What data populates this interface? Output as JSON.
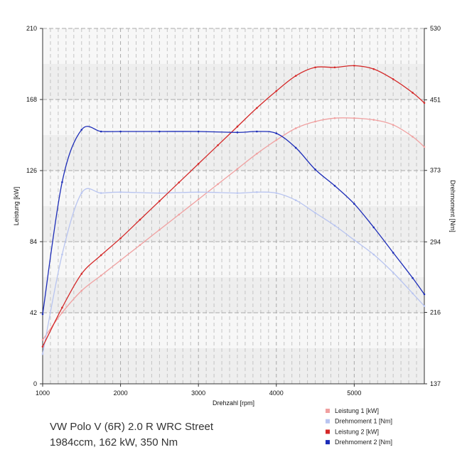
{
  "caption": {
    "title": "VW Polo V (6R) 2.0 R WRC Street",
    "subtitle": "1984ccm, 162 kW, 350 Nm"
  },
  "chart_data": {
    "type": "line",
    "xlabel": "Drehzahl [rpm]",
    "ylabel_left": "Leistung [kW]",
    "ylabel_right": "Drehmoment [Nm]",
    "xlim": [
      1000,
      5900
    ],
    "ylim_left": [
      0,
      210
    ],
    "ylim_right": [
      137,
      530
    ],
    "x_ticks": [
      1000,
      2000,
      3000,
      4000,
      5000
    ],
    "y_ticks_left": [
      0,
      42,
      84,
      126,
      168,
      210
    ],
    "y_ticks_right": [
      137,
      216,
      294,
      373,
      451,
      530
    ],
    "grid": true,
    "legend_position": "bottom-right",
    "series": [
      {
        "name": "Leistung 1 [kW]",
        "axis": "left",
        "color": "#f0a0a0",
        "x": [
          1000,
          1250,
          1500,
          1750,
          2000,
          2250,
          2500,
          2750,
          3000,
          3250,
          3500,
          3750,
          4000,
          4250,
          4500,
          4750,
          5000,
          5250,
          5500,
          5750,
          5900
        ],
        "y": [
          26,
          42,
          55,
          64,
          73,
          82,
          91,
          100,
          109,
          118,
          127,
          136,
          144,
          151,
          155,
          157,
          157,
          156,
          153,
          146,
          140
        ]
      },
      {
        "name": "Drehmoment 1 [Nm]",
        "axis": "right",
        "color": "#b8c4f0",
        "x": [
          1000,
          1250,
          1500,
          1750,
          2000,
          2500,
          3000,
          3500,
          3750,
          4000,
          4250,
          4500,
          4750,
          5000,
          5250,
          5500,
          5750,
          5900
        ],
        "y": [
          170,
          280,
          348,
          348,
          349,
          348,
          349,
          348,
          349,
          348,
          340,
          326,
          312,
          296,
          280,
          260,
          237,
          223
        ]
      },
      {
        "name": "Leistung 2 [kW]",
        "axis": "left",
        "color": "#d42828",
        "x": [
          1000,
          1250,
          1500,
          1750,
          2000,
          2250,
          2500,
          2750,
          3000,
          3250,
          3500,
          3750,
          4000,
          4250,
          4500,
          4750,
          5000,
          5250,
          5500,
          5750,
          5900
        ],
        "y": [
          22,
          45,
          65,
          76,
          86,
          97,
          108,
          119,
          130,
          141,
          152,
          163,
          173,
          182,
          187,
          187,
          188,
          186,
          180,
          172,
          166
        ]
      },
      {
        "name": "Drehmoment 2 [Nm]",
        "axis": "right",
        "color": "#1c2cb8",
        "x": [
          1000,
          1250,
          1500,
          1750,
          2000,
          2500,
          3000,
          3500,
          3750,
          4000,
          4250,
          4500,
          4750,
          5000,
          5250,
          5500,
          5750,
          5900
        ],
        "y": [
          214,
          360,
          418,
          416,
          416,
          416,
          416,
          415,
          416,
          414,
          398,
          374,
          356,
          336,
          310,
          282,
          254,
          236
        ]
      }
    ]
  }
}
